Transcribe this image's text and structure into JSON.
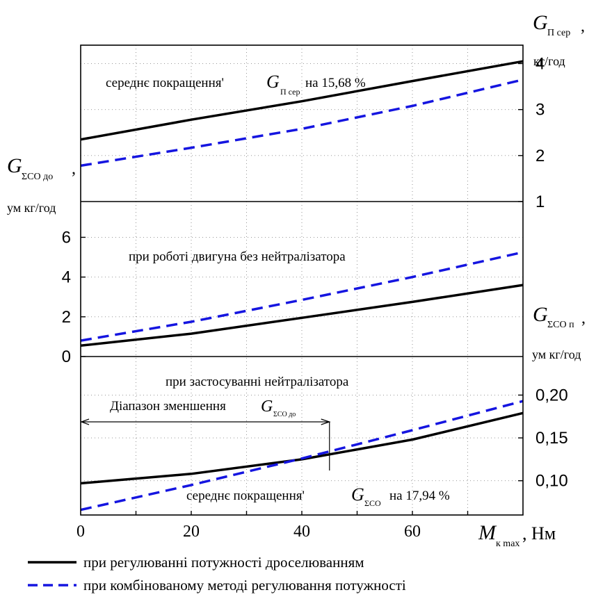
{
  "figure": {
    "legend": [
      {
        "label": "при регулюванні потужності дроселюванням",
        "color": "#000000",
        "dash": "solid"
      },
      {
        "label": "при комбінованому методі регулювання потужності",
        "color": "#1515e0",
        "dash": "dashed"
      }
    ],
    "x_axis": {
      "label_sym": "M",
      "label_sub": "к max",
      "label_unit": ", Нм",
      "ticks": [
        "0",
        "20",
        "40",
        "60"
      ]
    }
  },
  "chart_data": [
    {
      "type": "line",
      "panel": "top",
      "axis_side": "right",
      "ylabel": {
        "sym": "G",
        "sub": "П сер",
        "tail": ",",
        "unit": "кг/год"
      },
      "annotation": {
        "pre": "середнє покращення' ",
        "sym": "G",
        "sub": "П сер",
        "post": " на 15,68 %"
      },
      "xlim": [
        0,
        80
      ],
      "ylim": [
        1,
        4.4
      ],
      "yticks": [
        "1",
        "2",
        "3",
        "4"
      ],
      "x": [
        0,
        20,
        40,
        60,
        80
      ],
      "series": [
        {
          "values": [
            2.35,
            2.78,
            3.18,
            3.62,
            4.05
          ]
        },
        {
          "values": [
            1.78,
            2.17,
            2.58,
            3.08,
            3.65
          ]
        }
      ]
    },
    {
      "type": "line",
      "panel": "middle",
      "axis_side": "left",
      "ylabel": {
        "sym": "G",
        "sub": "ΣCO до",
        "tail": ",",
        "unit": "ум кг/год"
      },
      "annotation": {
        "text": "при роботі двигуна без нейтралізатора"
      },
      "xlim": [
        0,
        80
      ],
      "ylim": [
        0,
        7.8
      ],
      "yticks": [
        "0",
        "2",
        "4",
        "6"
      ],
      "x": [
        0,
        20,
        40,
        60,
        80
      ],
      "series": [
        {
          "values": [
            0.55,
            1.15,
            1.95,
            2.75,
            3.6
          ]
        },
        {
          "values": [
            0.8,
            1.75,
            2.85,
            4.0,
            5.25
          ]
        }
      ]
    },
    {
      "type": "line",
      "panel": "bottom",
      "axis_side": "right",
      "ylabel": {
        "sym": "G",
        "sub": "ΣCO п",
        "tail": ",",
        "unit": "ум кг/год"
      },
      "annotation": {
        "text": "при застосуванні нейтралізатора"
      },
      "annotation2": {
        "pre": "середнє покращення' ",
        "sym": "G",
        "sub": "ΣCO",
        "post": " на 17,94 %"
      },
      "range_label": {
        "pre": "Діапазон зменшення ",
        "sym": "G",
        "sub": "ΣCO до",
        "x_range": [
          0,
          45
        ]
      },
      "xlim": [
        0,
        80
      ],
      "ylim": [
        0.06,
        0.245
      ],
      "yticks": [
        "0,10",
        "0,15",
        "0,20"
      ],
      "x": [
        0,
        20,
        40,
        60,
        80
      ],
      "series": [
        {
          "values": [
            0.097,
            0.108,
            0.125,
            0.148,
            0.179
          ]
        },
        {
          "values": [
            0.066,
            0.095,
            0.126,
            0.159,
            0.193
          ]
        }
      ]
    }
  ]
}
